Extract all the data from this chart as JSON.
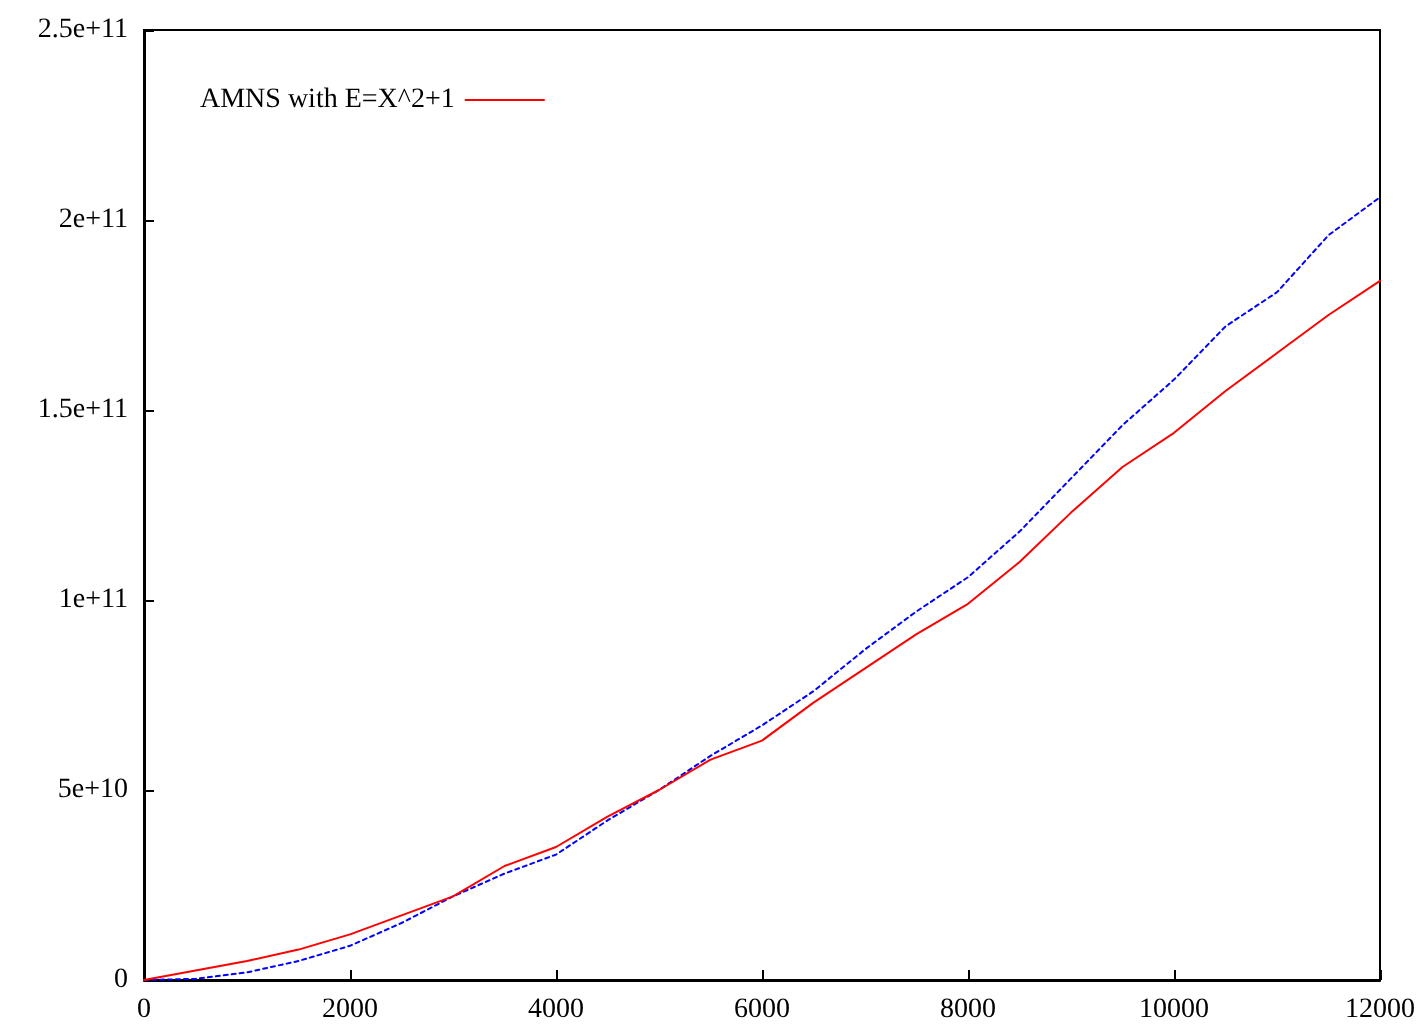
{
  "chart_data": {
    "type": "line",
    "x": [
      0,
      500,
      1000,
      1500,
      2000,
      2500,
      3000,
      3500,
      4000,
      4500,
      5000,
      5500,
      6000,
      6500,
      7000,
      7500,
      8000,
      8500,
      9000,
      9500,
      10000,
      10500,
      11000,
      11500,
      12000
    ],
    "series": [
      {
        "color": "#0000ff",
        "line_style": "dotted",
        "values": [
          0,
          300000000.0,
          2000000000.0,
          5000000000.0,
          9000000000.0,
          15000000000.0,
          22000000000.0,
          28000000000.0,
          33000000000.0,
          42000000000.0,
          50000000000.0,
          59000000000.0,
          67000000000.0,
          76000000000.0,
          87000000000.0,
          97000000000.0,
          106000000000.0,
          118000000000.0,
          132000000000.0,
          146000000000.0,
          158000000000.0,
          172000000000.0,
          181000000000.0,
          196000000000.0,
          206000000000.0
        ]
      },
      {
        "name": "AMNS with E=X^2+1",
        "color": "#ff0000",
        "line_style": "solid",
        "values": [
          0,
          2500000000.0,
          5000000000.0,
          8000000000.0,
          12000000000.0,
          17000000000.0,
          22000000000.0,
          30000000000.0,
          35000000000.0,
          43000000000.0,
          50000000000.0,
          58000000000.0,
          63000000000.0,
          73000000000.0,
          82000000000.0,
          91000000000.0,
          99000000000.0,
          110000000000.0,
          123000000000.0,
          135000000000.0,
          144000000000.0,
          155000000000.0,
          165000000000.0,
          175000000000.0,
          184000000000.0
        ]
      }
    ],
    "xlim": [
      0,
      12000
    ],
    "xticks": [
      0,
      2000,
      4000,
      6000,
      8000,
      10000,
      12000
    ],
    "ylim": [
      0,
      250000000000
    ],
    "yticks": [
      0,
      {
        "value": 50000000000,
        "label": "5e+10"
      },
      {
        "value": 100000000000,
        "label": "1e+11"
      },
      {
        "value": 150000000000,
        "label": "1.5e+11"
      },
      {
        "value": 200000000000,
        "label": "2e+11"
      },
      {
        "value": 250000000000,
        "label": "2.5e+11"
      }
    ],
    "grid": false,
    "legend": "top left",
    "marker": "none"
  }
}
